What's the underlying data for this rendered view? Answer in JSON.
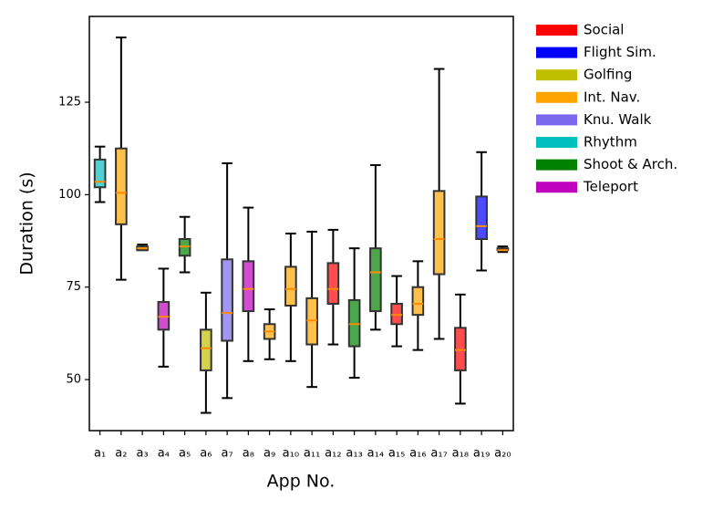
{
  "chart_data": {
    "type": "box",
    "x_label": "App No.",
    "y_label": "Duration (s)",
    "categories": [
      "a₁",
      "a₂",
      "a₃",
      "a₄",
      "a₅",
      "a₆",
      "a₇",
      "a₈",
      "a₉",
      "a₁₀",
      "a₁₁",
      "a₁₂",
      "a₁₃",
      "a₁₄",
      "a₁₅",
      "a₁₆",
      "a₁₇",
      "a₁₈",
      "a₁₉",
      "a₂₀"
    ],
    "ylim": [
      36.2,
      148.2
    ],
    "yticks": [
      50,
      75,
      100,
      125
    ],
    "median_color": "#ff8c00",
    "series": [
      {
        "name": "Social",
        "color": "#ff0000",
        "values": [
          null,
          null,
          null,
          null,
          null,
          null,
          null,
          null,
          null,
          null,
          null,
          {
            "min": 59.5,
            "q1": 70.5,
            "median": 74.5,
            "q3": 81.5,
            "max": 90.5
          },
          null,
          null,
          {
            "min": 59,
            "q1": 65,
            "median": 67.5,
            "q3": 70.5,
            "max": 78
          },
          null,
          null,
          {
            "min": 43.5,
            "q1": 52.5,
            "median": 58,
            "q3": 64,
            "max": 73
          },
          null,
          null
        ]
      },
      {
        "name": "Flight Sim.",
        "color": "#0000ff",
        "values": [
          null,
          null,
          null,
          null,
          null,
          null,
          null,
          null,
          null,
          null,
          null,
          null,
          null,
          null,
          null,
          null,
          null,
          null,
          {
            "min": 79.5,
            "q1": 88,
            "median": 91.5,
            "q3": 99.5,
            "max": 111.5
          },
          null
        ]
      },
      {
        "name": "Golfing",
        "color": "#bfbf00",
        "values": [
          null,
          null,
          null,
          null,
          null,
          {
            "min": 41,
            "q1": 52.5,
            "median": 58.5,
            "q3": 63.5,
            "max": 73.5
          },
          null,
          null,
          null,
          null,
          null,
          null,
          null,
          null,
          null,
          null,
          null,
          null,
          null,
          null
        ]
      },
      {
        "name": "Int. Nav.",
        "color": "#ffa500",
        "values": [
          null,
          {
            "min": 77,
            "q1": 92,
            "median": 100.5,
            "q3": 112.5,
            "max": 142.5
          },
          {
            "min": 85,
            "q1": 85,
            "median": 85.5,
            "q3": 86,
            "max": 86.5
          },
          null,
          null,
          null,
          null,
          null,
          {
            "min": 55.5,
            "q1": 61,
            "median": 63,
            "q3": 65,
            "max": 69
          },
          {
            "min": 55,
            "q1": 70,
            "median": 74.5,
            "q3": 80.5,
            "max": 89.5
          },
          {
            "min": 48,
            "q1": 59.5,
            "median": 66,
            "q3": 72,
            "max": 90
          },
          null,
          null,
          null,
          null,
          {
            "min": 58,
            "q1": 67.5,
            "median": 70.5,
            "q3": 75,
            "max": 82
          },
          {
            "min": 61,
            "q1": 78.5,
            "median": 88,
            "q3": 101,
            "max": 134
          },
          null,
          null,
          {
            "min": 84.5,
            "q1": 85,
            "median": 85,
            "q3": 85.5,
            "max": 86
          }
        ]
      },
      {
        "name": "Knu. Walk",
        "color": "#7b68ee",
        "values": [
          null,
          null,
          null,
          null,
          null,
          null,
          {
            "min": 45,
            "q1": 60.5,
            "median": 68,
            "q3": 82.5,
            "max": 108.5
          },
          null,
          null,
          null,
          null,
          null,
          null,
          null,
          null,
          null,
          null,
          null,
          null,
          null
        ]
      },
      {
        "name": "Rhythm",
        "color": "#00bfbf",
        "values": [
          {
            "min": 98,
            "q1": 102,
            "median": 103.5,
            "q3": 109.5,
            "max": 113
          },
          null,
          null,
          null,
          null,
          null,
          null,
          null,
          null,
          null,
          null,
          null,
          null,
          null,
          null,
          null,
          null,
          null,
          null,
          null
        ]
      },
      {
        "name": "Shoot & Arch.",
        "color": "#008000",
        "values": [
          null,
          null,
          null,
          null,
          {
            "min": 79,
            "q1": 83.5,
            "median": 86,
            "q3": 88,
            "max": 94
          },
          null,
          null,
          null,
          null,
          null,
          null,
          null,
          {
            "min": 50.5,
            "q1": 59,
            "median": 65,
            "q3": 71.5,
            "max": 85.5
          },
          {
            "min": 63.5,
            "q1": 68.5,
            "median": 79,
            "q3": 85.5,
            "max": 108
          },
          null,
          null,
          null,
          null,
          null,
          null
        ]
      },
      {
        "name": "Teleport",
        "color": "#bf00bf",
        "values": [
          null,
          null,
          null,
          {
            "min": 53.5,
            "q1": 63.5,
            "median": 67,
            "q3": 71,
            "max": 80
          },
          null,
          null,
          null,
          {
            "min": 55,
            "q1": 68.5,
            "median": 74.5,
            "q3": 82,
            "max": 96.5
          },
          null,
          null,
          null,
          null,
          null,
          null,
          null,
          null,
          null,
          null,
          null,
          null
        ]
      }
    ]
  }
}
